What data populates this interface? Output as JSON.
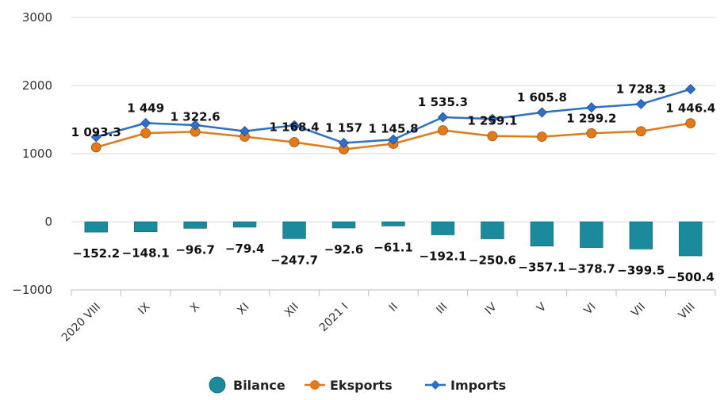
{
  "chart_data": {
    "type": "bar+line",
    "categories": [
      "2020 VIII",
      "IX",
      "X",
      "XI",
      "XII",
      "2021 I",
      "II",
      "III",
      "IV",
      "V",
      "VI",
      "VII",
      "VIII"
    ],
    "ylim": [
      -1000,
      3000
    ],
    "yticks": [
      3000,
      2000,
      1000,
      0,
      -1000
    ],
    "ytick_labels": [
      "3000",
      "2000",
      "1000",
      "0",
      "−1000"
    ],
    "grid": true,
    "legend_position": "bottom",
    "series": [
      {
        "name": "Bilance",
        "kind": "bar",
        "color": "#1b8a9c",
        "values": [
          -152.2,
          -148.1,
          -96.7,
          -79.4,
          -247.7,
          -92.6,
          -61.1,
          -192.1,
          -250.6,
          -357.1,
          -378.7,
          -399.5,
          -500.4
        ],
        "labels": [
          "−152.2",
          "−148.1",
          "−96.7",
          "−79.4",
          "−247.7",
          "−92.6",
          "−61.1",
          "−192.1",
          "−250.6",
          "−357.1",
          "−378.7",
          "−399.5",
          "−500.4"
        ]
      },
      {
        "name": "Eksports",
        "kind": "line",
        "color": "#e07a1c",
        "values": [
          1093.3,
          1301,
          1322.6,
          1250,
          1168.4,
          1064.4,
          1145.8,
          1343.2,
          1259.1,
          1248.7,
          1299.2,
          1328.8,
          1446.4
        ],
        "labels": [
          "1 093.3",
          "",
          "1 322.6",
          "",
          "1 168.4",
          "",
          "1 145.8",
          "",
          "1 259.1",
          "",
          "1 299.2",
          "",
          "1 446.4"
        ]
      },
      {
        "name": "Imports",
        "kind": "line",
        "color": "#2e6fc7",
        "values": [
          1245.5,
          1449,
          1419.3,
          1329.4,
          1416.1,
          1157,
          1206.9,
          1535.3,
          1509.7,
          1605.8,
          1677.9,
          1728.3,
          1946.8
        ],
        "labels": [
          "",
          "1 449",
          "",
          "",
          "",
          "1 157",
          "",
          "1 535.3",
          "",
          "1 605.8",
          "",
          "1 728.3",
          ""
        ]
      }
    ]
  }
}
